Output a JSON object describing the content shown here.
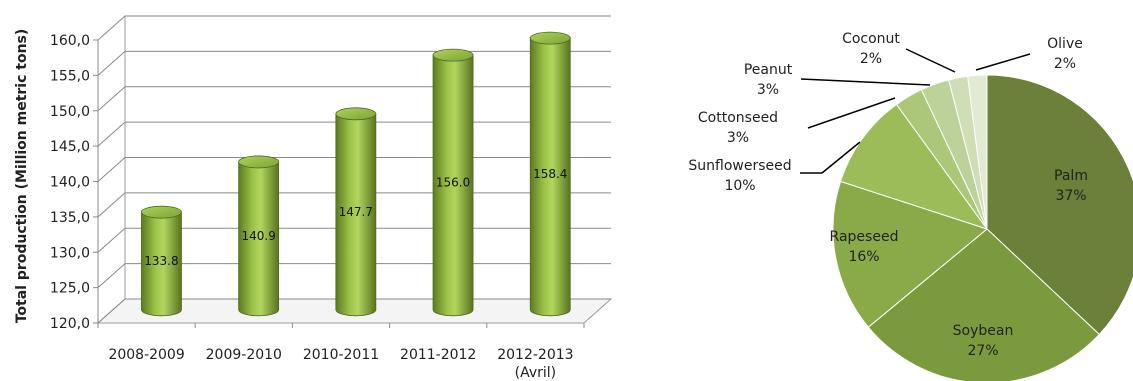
{
  "chart_data": [
    {
      "type": "bar",
      "style": "3d-cylinder",
      "title": "",
      "xlabel": "",
      "ylabel": "Total production (Million metric tons)",
      "categories": [
        "2008-2009",
        "2009-2010",
        "2010-2011",
        "2011-2012",
        "2012-2013 (Avril)"
      ],
      "category_lines": [
        [
          "2008-2009"
        ],
        [
          "2009-2010"
        ],
        [
          "2010-2011"
        ],
        [
          "2011-2012"
        ],
        [
          "2012-2013",
          "(Avril)"
        ]
      ],
      "values": [
        133.8,
        140.9,
        147.7,
        156.0,
        158.4
      ],
      "value_labels": [
        "133.8",
        "140.9",
        "147.7",
        "156.0",
        "158.4"
      ],
      "ylim": [
        120,
        160
      ],
      "yticks": [
        120,
        125,
        130,
        135,
        140,
        145,
        150,
        155,
        160
      ],
      "ytick_labels": [
        "120,0",
        "125,0",
        "130,0",
        "135,0",
        "140,0",
        "145,0",
        "150,0",
        "155,0",
        "160,0"
      ],
      "grid": true,
      "bar_color": "#8fb440"
    },
    {
      "type": "pie",
      "title": "",
      "slices": [
        {
          "label": "Palm",
          "percent_label": "37%",
          "value": 37,
          "color": "#6b8038"
        },
        {
          "label": "Soybean",
          "percent_label": "27%",
          "value": 27,
          "color": "#7b9a3e"
        },
        {
          "label": "Rapeseed",
          "percent_label": "16%",
          "value": 16,
          "color": "#8aaa4a"
        },
        {
          "label": "Sunflowerseed",
          "percent_label": "10%",
          "value": 10,
          "color": "#9bbc58"
        },
        {
          "label": "Cottonseed",
          "percent_label": "3%",
          "value": 3,
          "color": "#acc77a"
        },
        {
          "label": "Peanut",
          "percent_label": "3%",
          "value": 3,
          "color": "#bcd29a"
        },
        {
          "label": "Coconut",
          "percent_label": "2%",
          "value": 2,
          "color": "#cfdeb6"
        },
        {
          "label": "Olive",
          "percent_label": "2%",
          "value": 2,
          "color": "#e2ead4"
        }
      ]
    }
  ]
}
